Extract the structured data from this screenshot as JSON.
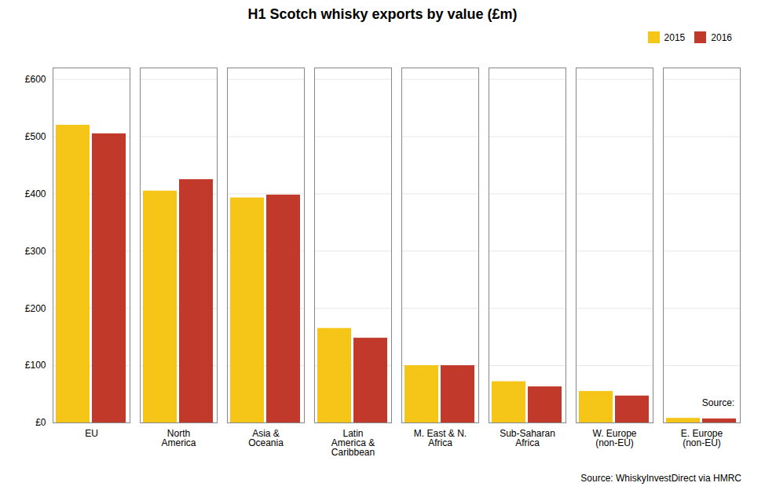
{
  "chart_data": {
    "type": "bar",
    "title": "H1 Scotch whisky exports by value (£m)",
    "categories": [
      "EU",
      "North\nAmerica",
      "Asia &\nOceania",
      "Latin\nAmerica &\nCaribbean",
      "M. East & N.\nAfrica",
      "Sub-Saharan\nAfrica",
      "W. Europe\n(non-EU)",
      "E. Europe\n(non-EU)"
    ],
    "series": [
      {
        "name": "2015",
        "color": "#F5C518",
        "values": [
          520,
          405,
          393,
          165,
          100,
          72,
          55,
          8
        ]
      },
      {
        "name": "2016",
        "color": "#C0392B",
        "values": [
          505,
          425,
          398,
          148,
          100,
          63,
          47,
          7
        ]
      }
    ],
    "ylim": [
      0,
      620
    ],
    "yticks": [
      {
        "value": 0,
        "label": "£0"
      },
      {
        "value": 100,
        "label": "£100"
      },
      {
        "value": 200,
        "label": "£200"
      },
      {
        "value": 300,
        "label": "£300"
      },
      {
        "value": 400,
        "label": "£400"
      },
      {
        "value": 500,
        "label": "£500"
      },
      {
        "value": 600,
        "label": "£600"
      }
    ],
    "grid": true,
    "legend": "upper right",
    "annotations": [
      "Source: ",
      "Source: WhiskyInvestDirect via HMRC"
    ]
  }
}
